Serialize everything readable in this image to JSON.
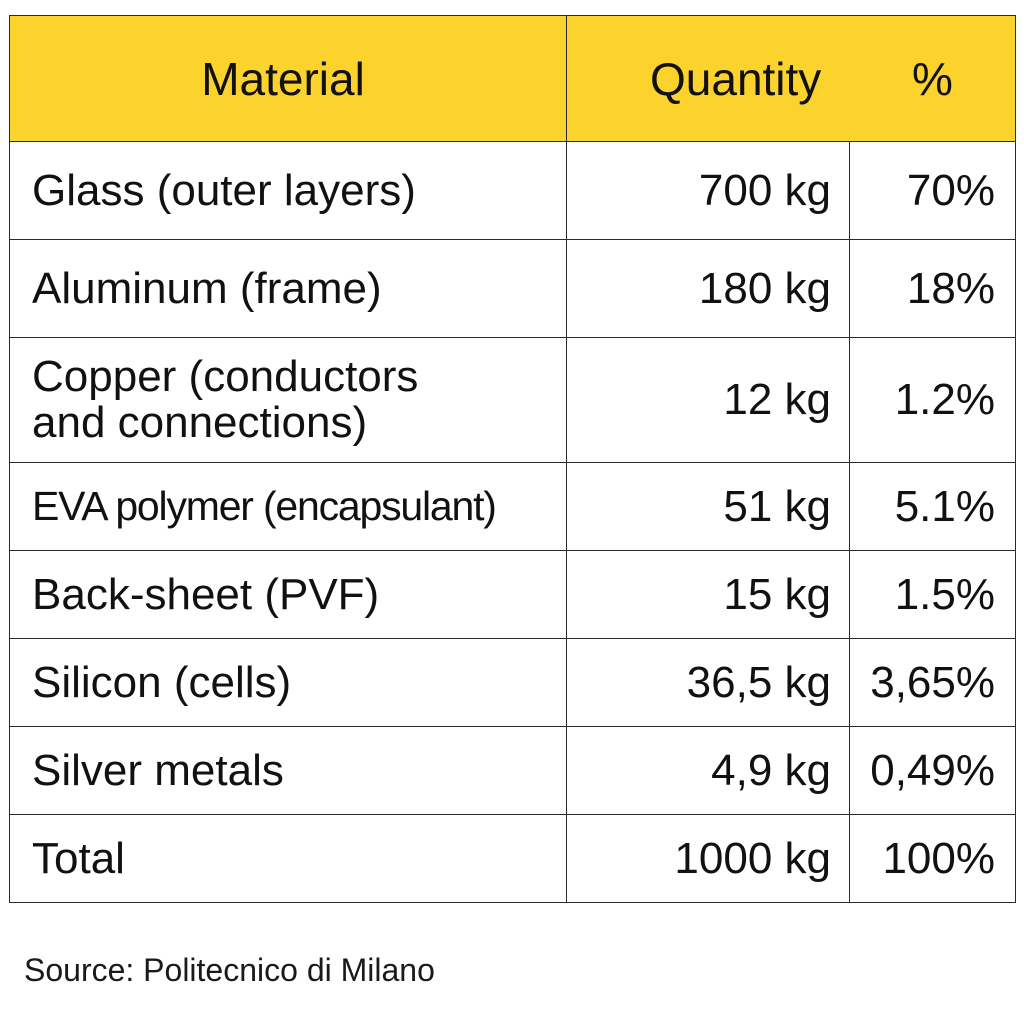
{
  "colors": {
    "header_bg": "#fcd22c",
    "border": "#2a2a2a",
    "text": "#111111"
  },
  "header": {
    "material": "Material",
    "quantity": "Quantity",
    "percent": "%"
  },
  "rows": [
    {
      "material": "Glass (outer layers)",
      "quantity": "700 kg",
      "percent": "70%"
    },
    {
      "material": "Aluminum (frame)",
      "quantity": "180 kg",
      "percent": "18%"
    },
    {
      "material_line1": "Copper (conductors",
      "material_line2": "and connections)",
      "quantity": "12 kg",
      "percent": "1.2%"
    },
    {
      "material": "EVA polymer (encapsulant)",
      "quantity": "51 kg",
      "percent": "5.1%"
    },
    {
      "material": "Back-sheet (PVF)",
      "quantity": "15 kg",
      "percent": "1.5%"
    },
    {
      "material": "Silicon (cells)",
      "quantity": "36,5 kg",
      "percent": "3,65%"
    },
    {
      "material": "Silver metals",
      "quantity": "4,9 kg",
      "percent": "0,49%"
    },
    {
      "material": "Total",
      "quantity": "1000 kg",
      "percent": "100%"
    }
  ],
  "source": "Source: Politecnico di Milano"
}
